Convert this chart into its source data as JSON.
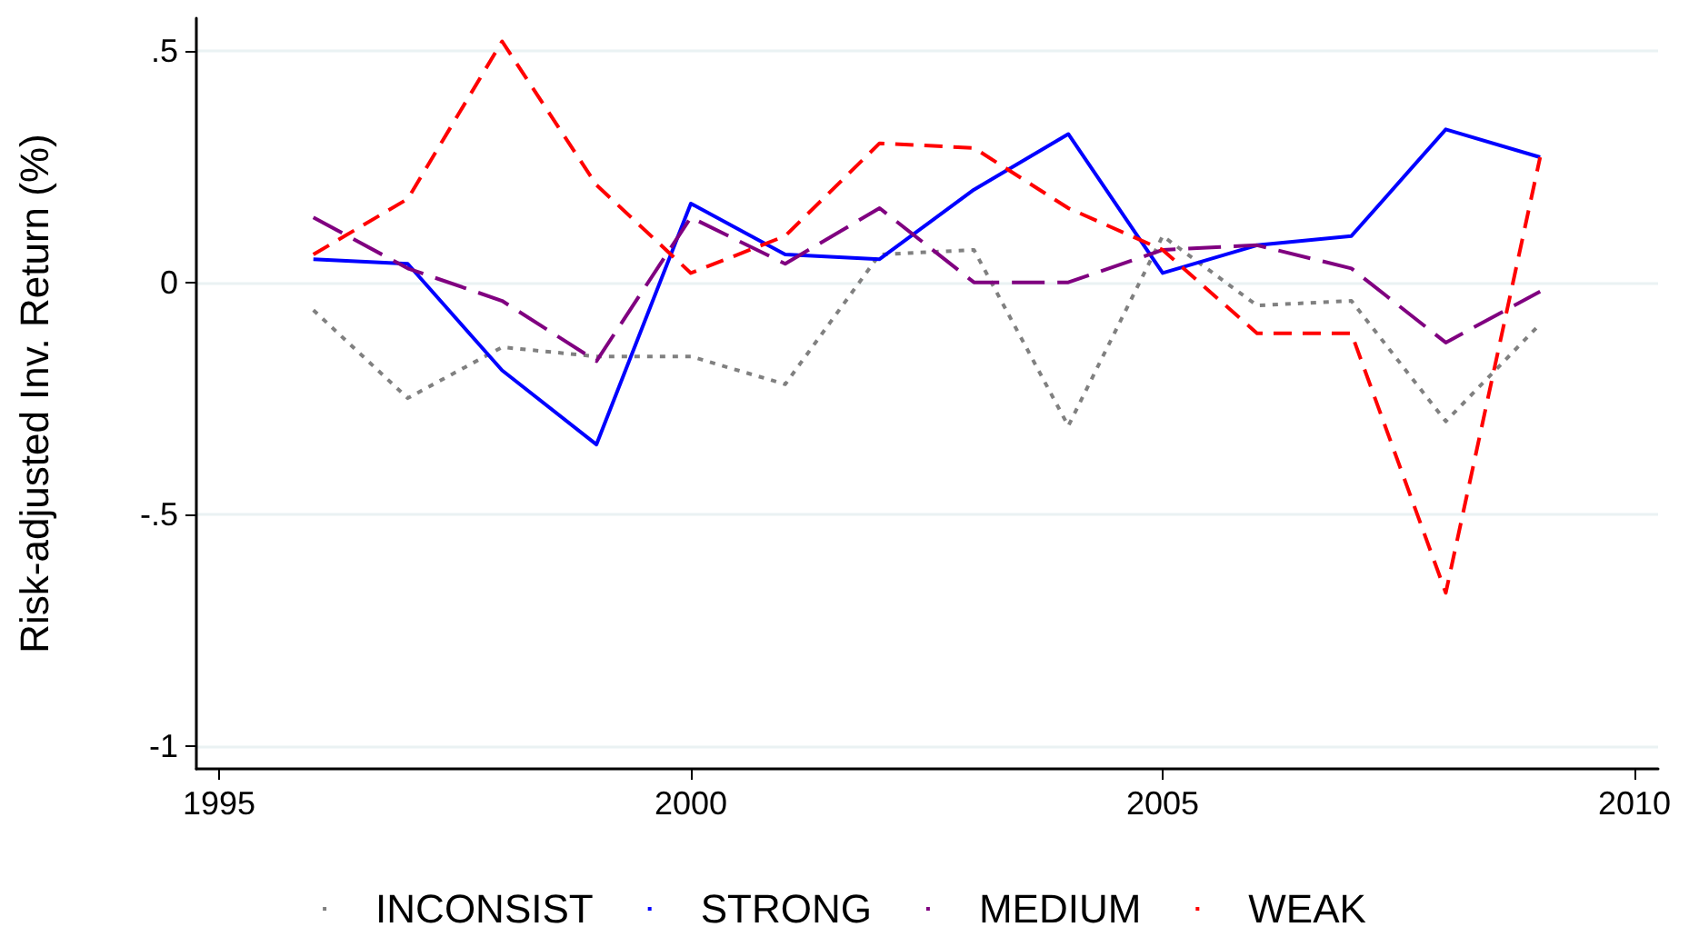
{
  "chart_data": {
    "type": "line",
    "ylabel": "Risk-adjusted Inv. Return (%)",
    "x": [
      1996,
      1997,
      1998,
      1999,
      2000,
      2001,
      2002,
      2003,
      2004,
      2005,
      2006,
      2007,
      2008,
      2009
    ],
    "xlim": [
      1994.76,
      2010.25
    ],
    "xticks": [
      1995,
      2000,
      2005,
      2010
    ],
    "ylim": [
      -1.05,
      0.57
    ],
    "yticks": [
      {
        "value": -1,
        "label": "-1"
      },
      {
        "value": -0.5,
        "label": "-.5"
      },
      {
        "value": 0,
        "label": "0"
      },
      {
        "value": 0.5,
        "label": ".5"
      }
    ],
    "grid": "y",
    "legend": "bottom",
    "marker": "none",
    "series": [
      {
        "name": "INCONSIST",
        "color": "#808080",
        "line_style": "dotted",
        "values": [
          -0.06,
          -0.25,
          -0.14,
          -0.16,
          -0.16,
          -0.22,
          0.06,
          0.07,
          -0.31,
          0.1,
          -0.05,
          -0.04,
          -0.3,
          -0.09
        ]
      },
      {
        "name": "STRONG",
        "color": "#0000ff",
        "line_style": "solid",
        "values": [
          0.05,
          0.04,
          -0.19,
          -0.35,
          0.17,
          0.06,
          0.05,
          0.2,
          0.32,
          0.02,
          0.08,
          0.1,
          0.33,
          0.27
        ]
      },
      {
        "name": "MEDIUM",
        "color": "#800080",
        "line_style": "dashed",
        "values": [
          0.14,
          0.03,
          -0.04,
          -0.17,
          0.14,
          0.04,
          0.16,
          0.0,
          0.0,
          0.07,
          0.08,
          0.03,
          -0.13,
          -0.02
        ]
      },
      {
        "name": "WEAK",
        "color": "#ff0000",
        "line_style": "dashed",
        "values": [
          0.06,
          0.18,
          0.52,
          0.21,
          0.02,
          0.1,
          0.3,
          0.29,
          0.16,
          0.07,
          -0.11,
          -0.11,
          -0.67,
          0.27
        ]
      }
    ]
  }
}
